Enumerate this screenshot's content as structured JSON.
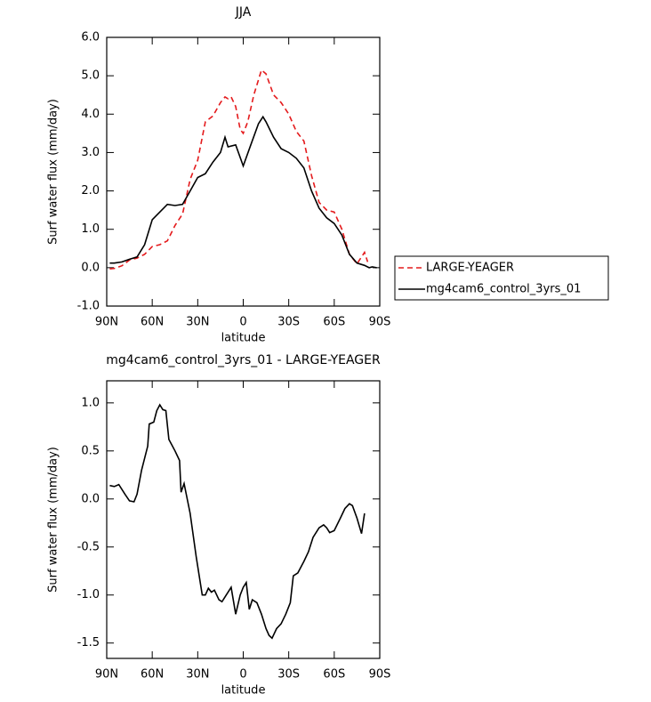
{
  "chart_data": [
    {
      "type": "line",
      "title": "JJA",
      "xlabel": "latitude",
      "ylabel": "Surf water flux (mm/day)",
      "xlim": [
        90,
        -90
      ],
      "ylim": [
        -1,
        6
      ],
      "xticks": [
        {
          "value": 90,
          "label": "90N"
        },
        {
          "value": 60,
          "label": "60N"
        },
        {
          "value": 30,
          "label": "30N"
        },
        0,
        {
          "value": -30,
          "label": "30S"
        },
        {
          "value": -60,
          "label": "60S"
        },
        {
          "value": -90,
          "label": "90S"
        }
      ],
      "yticks": [
        {
          "value": -1,
          "label": "-1.0"
        },
        {
          "value": 0,
          "label": "0.0"
        },
        {
          "value": 1,
          "label": "1.0"
        },
        {
          "value": 2,
          "label": "2.0"
        },
        {
          "value": 3,
          "label": "3.0"
        },
        {
          "value": 4,
          "label": "4.0"
        },
        {
          "value": 5,
          "label": "5.0"
        },
        {
          "value": 6,
          "label": "6.0"
        }
      ],
      "legend": "right",
      "series": [
        {
          "name": "LARGE-YEAGER",
          "color": "#e41a1c",
          "dash": true,
          "x": [
            88,
            85,
            80,
            75,
            70,
            65,
            60,
            55,
            50,
            45,
            40,
            35,
            30,
            25,
            20,
            15,
            12,
            10,
            8,
            5,
            2,
            0,
            -3,
            -7,
            -12,
            -15,
            -20,
            -25,
            -30,
            -35,
            -40,
            -45,
            -50,
            -55,
            -60,
            -65,
            -70,
            -75,
            -78,
            -80,
            -82
          ],
          "values": [
            -0.03,
            -0.02,
            0.05,
            0.2,
            0.25,
            0.35,
            0.55,
            0.6,
            0.7,
            1.1,
            1.4,
            2.3,
            2.8,
            3.8,
            3.95,
            4.3,
            4.45,
            4.4,
            4.45,
            4.2,
            3.6,
            3.5,
            3.8,
            4.5,
            5.15,
            5.05,
            4.5,
            4.3,
            4.0,
            3.55,
            3.3,
            2.4,
            1.7,
            1.5,
            1.45,
            1.0,
            0.35,
            0.1,
            0.28,
            0.4,
            0.15
          ]
        },
        {
          "name": "mg4cam6_control_3yrs_01",
          "color": "#000000",
          "dash": false,
          "x": [
            88,
            85,
            80,
            75,
            70,
            65,
            60,
            55,
            50,
            45,
            40,
            35,
            30,
            25,
            20,
            15,
            12,
            10,
            5,
            0,
            -5,
            -10,
            -13,
            -15,
            -20,
            -25,
            -30,
            -35,
            -40,
            -45,
            -50,
            -55,
            -60,
            -65,
            -70,
            -75,
            -80,
            -83,
            -85,
            -88
          ],
          "values": [
            0.12,
            0.12,
            0.15,
            0.22,
            0.28,
            0.6,
            1.25,
            1.45,
            1.65,
            1.62,
            1.65,
            2.0,
            2.35,
            2.45,
            2.75,
            3.0,
            3.4,
            3.15,
            3.2,
            2.65,
            3.2,
            3.75,
            3.93,
            3.8,
            3.4,
            3.1,
            3.0,
            2.85,
            2.6,
            2.0,
            1.55,
            1.3,
            1.15,
            0.85,
            0.35,
            0.12,
            0.06,
            0.0,
            0.02,
            0.0
          ]
        }
      ]
    },
    {
      "type": "line",
      "title": "mg4cam6_control_3yrs_01 - LARGE-YEAGER",
      "xlabel": "latitude",
      "ylabel": "Surf water flux (mm/day)",
      "xlim": [
        90,
        -90
      ],
      "ylim": [
        -1.66,
        1.23
      ],
      "xticks": [
        {
          "value": 90,
          "label": "90N"
        },
        {
          "value": 60,
          "label": "60N"
        },
        {
          "value": 30,
          "label": "30N"
        },
        0,
        {
          "value": -30,
          "label": "30S"
        },
        {
          "value": -60,
          "label": "60S"
        },
        {
          "value": -90,
          "label": "90S"
        }
      ],
      "yticks": [
        {
          "value": -1.5,
          "label": "-1.5"
        },
        {
          "value": -1,
          "label": "-1.0"
        },
        {
          "value": -0.5,
          "label": "-0.5"
        },
        {
          "value": 0,
          "label": "0.0"
        },
        {
          "value": 0.5,
          "label": "0.5"
        },
        {
          "value": 1,
          "label": "1.0"
        }
      ],
      "series": [
        {
          "color": "#000000",
          "dash": false,
          "x": [
            88,
            85,
            82,
            78,
            75,
            72,
            70,
            67,
            63,
            62,
            59,
            57,
            55,
            53,
            51,
            49,
            45,
            42,
            41,
            39,
            35,
            31,
            28,
            27,
            25,
            23,
            21,
            19,
            16,
            14,
            12,
            8,
            5,
            2,
            0,
            -2,
            -4,
            -6,
            -9,
            -12,
            -15,
            -17,
            -19,
            -22,
            -25,
            -28,
            -31,
            -33,
            -36,
            -40,
            -43,
            -46,
            -50,
            -53,
            -55,
            -57,
            -60,
            -64,
            -67,
            -70,
            -72,
            -75,
            -78,
            -80
          ],
          "values": [
            0.14,
            0.13,
            0.15,
            0.05,
            -0.02,
            -0.03,
            0.05,
            0.3,
            0.55,
            0.78,
            0.8,
            0.92,
            0.98,
            0.93,
            0.92,
            0.62,
            0.5,
            0.4,
            0.07,
            0.16,
            -0.15,
            -0.6,
            -0.9,
            -1.0,
            -1.0,
            -0.93,
            -0.97,
            -0.95,
            -1.05,
            -1.07,
            -1.02,
            -0.92,
            -1.2,
            -1.0,
            -0.92,
            -0.87,
            -1.15,
            -1.05,
            -1.08,
            -1.2,
            -1.35,
            -1.42,
            -1.45,
            -1.35,
            -1.3,
            -1.2,
            -1.08,
            -0.8,
            -0.77,
            -0.65,
            -0.55,
            -0.4,
            -0.3,
            -0.27,
            -0.3,
            -0.35,
            -0.33,
            -0.2,
            -0.1,
            -0.05,
            -0.07,
            -0.2,
            -0.36,
            -0.15
          ]
        }
      ]
    }
  ]
}
